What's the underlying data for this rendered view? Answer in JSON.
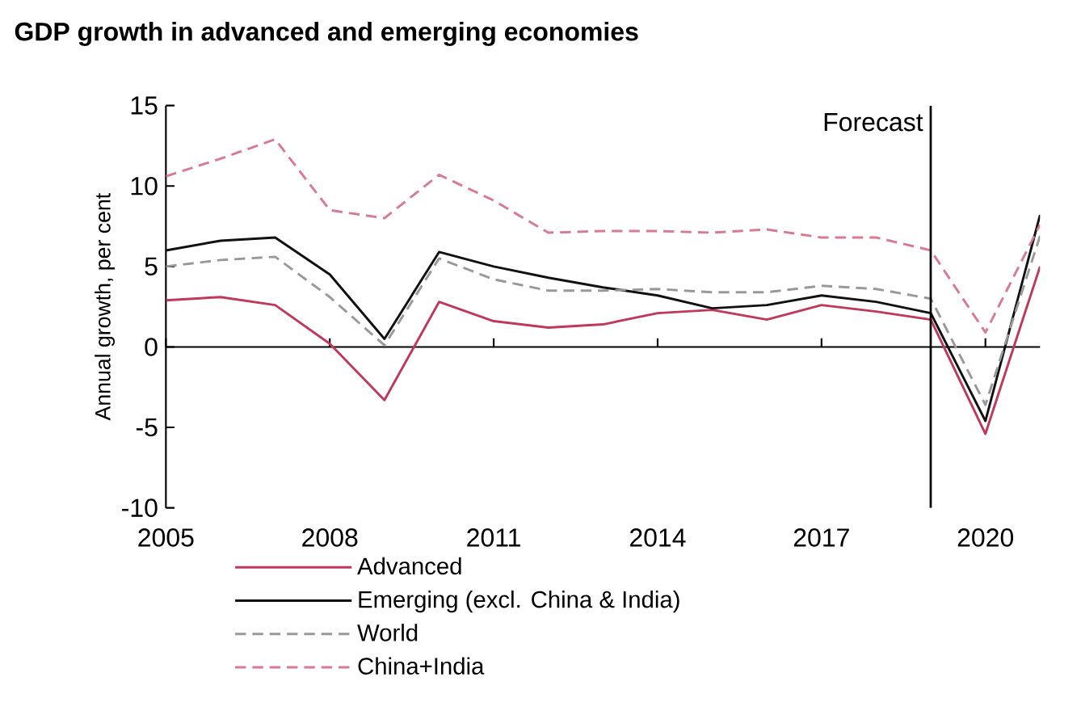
{
  "chart_data": {
    "type": "line",
    "title": "GDP growth in advanced and emerging economies",
    "ylabel": "Annual growth, per cent",
    "x": [
      2005,
      2006,
      2007,
      2008,
      2009,
      2010,
      2011,
      2012,
      2013,
      2014,
      2015,
      2016,
      2017,
      2018,
      2019,
      2020,
      2021
    ],
    "series": [
      {
        "name": "Advanced",
        "color": "#c0395a",
        "line_style": "solid",
        "values": [
          2.9,
          3.1,
          2.6,
          0.2,
          -3.3,
          2.8,
          1.6,
          1.2,
          1.4,
          2.1,
          2.3,
          1.7,
          2.6,
          2.2,
          1.7,
          -5.4,
          5.0
        ]
      },
      {
        "name": "Emerging (excl. China & India)",
        "color": "#111111",
        "line_style": "solid",
        "values": [
          6.0,
          6.6,
          6.8,
          4.5,
          0.5,
          5.9,
          5.0,
          4.3,
          3.7,
          3.2,
          2.4,
          2.6,
          3.2,
          2.8,
          2.1,
          -4.6,
          8.2
        ]
      },
      {
        "name": "World",
        "color": "#999999",
        "line_style": "dashed",
        "values": [
          5.0,
          5.4,
          5.6,
          3.1,
          0.1,
          5.5,
          4.2,
          3.5,
          3.5,
          3.6,
          3.4,
          3.4,
          3.8,
          3.6,
          3.0,
          -3.6,
          6.9
        ]
      },
      {
        "name": "China+India",
        "color": "#d87a92",
        "line_style": "dashed",
        "values": [
          10.6,
          11.7,
          12.9,
          8.5,
          8.0,
          10.7,
          9.1,
          7.1,
          7.2,
          7.2,
          7.1,
          7.3,
          6.8,
          6.8,
          6.0,
          0.9,
          7.6
        ]
      }
    ],
    "xlim": [
      2005,
      2021
    ],
    "xticks": [
      2005,
      2008,
      2011,
      2014,
      2017,
      2020
    ],
    "ylim": [
      -10,
      15
    ],
    "yticks": [
      -10,
      -5,
      0,
      5,
      10,
      15
    ],
    "ref_lines": [
      {
        "axis": "x",
        "value": 2019,
        "label": "Forecast",
        "color": "#000000"
      }
    ],
    "legend": "bottom",
    "marker": "none"
  }
}
